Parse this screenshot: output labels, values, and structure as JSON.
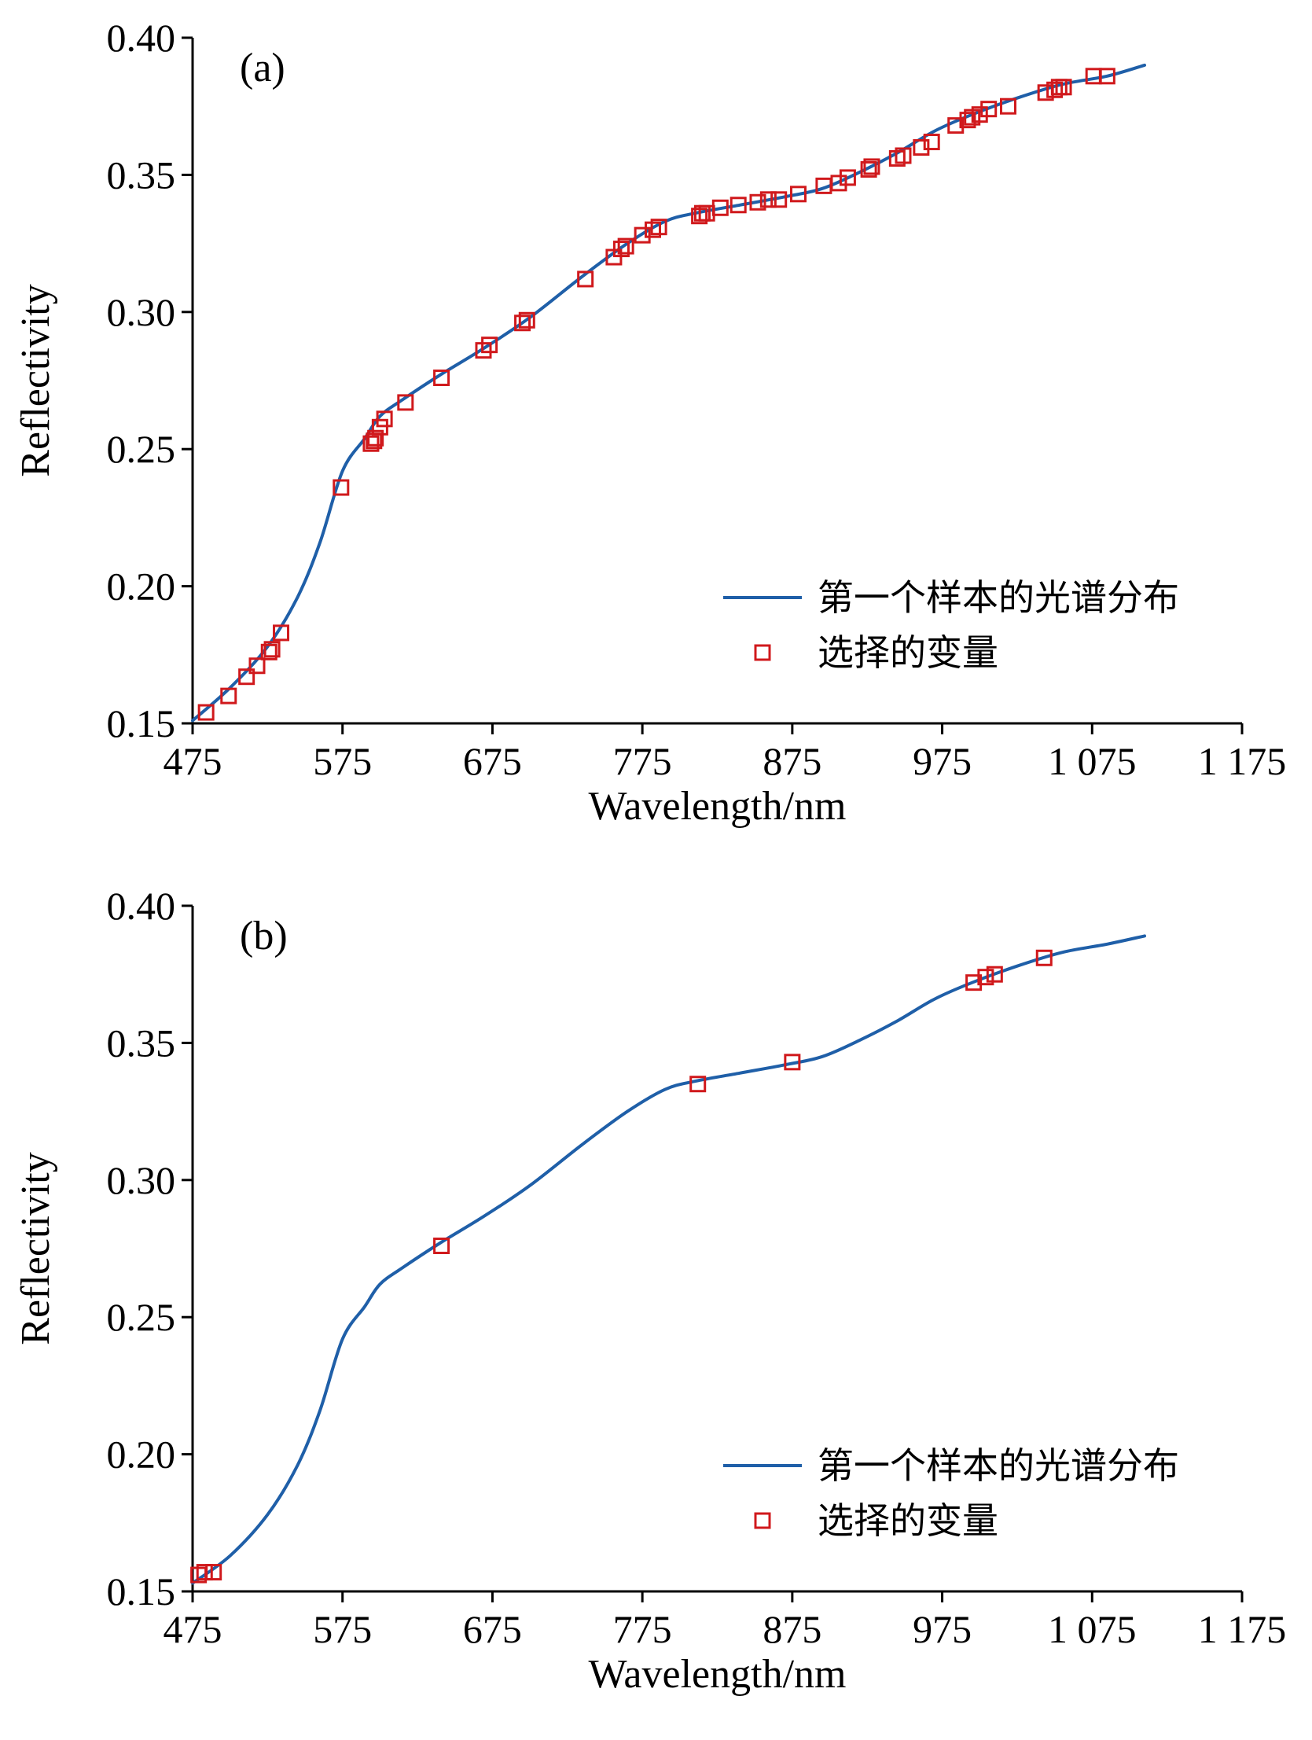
{
  "chart_data": [
    {
      "type": "line",
      "panel_label": "(a)",
      "xlabel": "Wavelength/nm",
      "ylabel": "Reflectivity",
      "xlim": [
        475,
        1175
      ],
      "ylim": [
        0.15,
        0.4
      ],
      "xticks": [
        475,
        575,
        675,
        775,
        875,
        975,
        1075,
        1175
      ],
      "xtick_labels": [
        "475",
        "575",
        "675",
        "775",
        "875",
        "975",
        "1 075",
        "1 175"
      ],
      "yticks": [
        0.15,
        0.2,
        0.25,
        0.3,
        0.35,
        0.4
      ],
      "ytick_labels": [
        "0.15",
        "0.20",
        "0.25",
        "0.30",
        "0.35",
        "0.40"
      ],
      "legend_position": "bottom-right",
      "series": [
        {
          "name": "第一个样本的光谱分布",
          "kind": "line",
          "color": "#1f5fa8",
          "x": [
            475,
            500,
            525,
            545,
            560,
            575,
            590,
            600,
            615,
            640,
            670,
            700,
            735,
            765,
            790,
            810,
            840,
            870,
            895,
            920,
            945,
            970,
            995,
            1025,
            1055,
            1085,
            1110
          ],
          "y": [
            0.151,
            0.163,
            0.178,
            0.196,
            0.216,
            0.242,
            0.254,
            0.262,
            0.268,
            0.277,
            0.287,
            0.298,
            0.313,
            0.325,
            0.333,
            0.336,
            0.339,
            0.342,
            0.345,
            0.351,
            0.358,
            0.366,
            0.372,
            0.378,
            0.383,
            0.386,
            0.39
          ]
        },
        {
          "name": "选择的变量",
          "kind": "scatter",
          "color": "#d0191c",
          "x": [
            484,
            499,
            511,
            518,
            526,
            528,
            534,
            574,
            594,
            596,
            597,
            600,
            603,
            617,
            641,
            669,
            673,
            695,
            698,
            737,
            756,
            761,
            764,
            775,
            782,
            786,
            813,
            815,
            818,
            827,
            839,
            852,
            859,
            866,
            879,
            896,
            906,
            912,
            926,
            928,
            945,
            949,
            961,
            968,
            984,
            992,
            995,
            1000,
            1006,
            1019,
            1044,
            1050,
            1053,
            1056,
            1076,
            1085
          ],
          "y": [
            0.154,
            0.16,
            0.167,
            0.171,
            0.176,
            0.177,
            0.183,
            0.236,
            0.252,
            0.253,
            0.254,
            0.258,
            0.261,
            0.267,
            0.276,
            0.286,
            0.288,
            0.296,
            0.297,
            0.312,
            0.32,
            0.323,
            0.324,
            0.328,
            0.33,
            0.331,
            0.335,
            0.336,
            0.336,
            0.338,
            0.339,
            0.34,
            0.341,
            0.341,
            0.343,
            0.346,
            0.347,
            0.349,
            0.352,
            0.353,
            0.356,
            0.357,
            0.36,
            0.362,
            0.368,
            0.37,
            0.371,
            0.372,
            0.374,
            0.375,
            0.38,
            0.381,
            0.382,
            0.382,
            0.386,
            0.386
          ]
        }
      ]
    },
    {
      "type": "line",
      "panel_label": "(b)",
      "xlabel": "Wavelength/nm",
      "ylabel": "Reflectivity",
      "xlim": [
        475,
        1175
      ],
      "ylim": [
        0.15,
        0.4
      ],
      "xticks": [
        475,
        575,
        675,
        775,
        875,
        975,
        1075,
        1175
      ],
      "xtick_labels": [
        "475",
        "575",
        "675",
        "775",
        "875",
        "975",
        "1 075",
        "1 175"
      ],
      "yticks": [
        0.15,
        0.2,
        0.25,
        0.3,
        0.35,
        0.4
      ],
      "ytick_labels": [
        "0.15",
        "0.20",
        "0.25",
        "0.30",
        "0.35",
        "0.40"
      ],
      "legend_position": "bottom-right",
      "series": [
        {
          "name": "第一个样本的光谱分布",
          "kind": "line",
          "color": "#1f5fa8",
          "x": [
            475,
            500,
            525,
            545,
            560,
            575,
            590,
            600,
            615,
            640,
            670,
            700,
            735,
            765,
            790,
            810,
            840,
            870,
            895,
            920,
            945,
            970,
            995,
            1025,
            1055,
            1085,
            1110
          ],
          "y": [
            0.153,
            0.163,
            0.178,
            0.196,
            0.216,
            0.242,
            0.254,
            0.262,
            0.268,
            0.277,
            0.287,
            0.298,
            0.313,
            0.325,
            0.333,
            0.336,
            0.339,
            0.342,
            0.345,
            0.351,
            0.358,
            0.366,
            0.372,
            0.378,
            0.383,
            0.386,
            0.389
          ]
        },
        {
          "name": "选择的变量",
          "kind": "scatter",
          "color": "#d0191c",
          "x": [
            479,
            483,
            489,
            641,
            812,
            875,
            996,
            1004,
            1010,
            1043
          ],
          "y": [
            0.156,
            0.157,
            0.157,
            0.276,
            0.335,
            0.343,
            0.372,
            0.374,
            0.375,
            0.381
          ]
        }
      ]
    }
  ]
}
